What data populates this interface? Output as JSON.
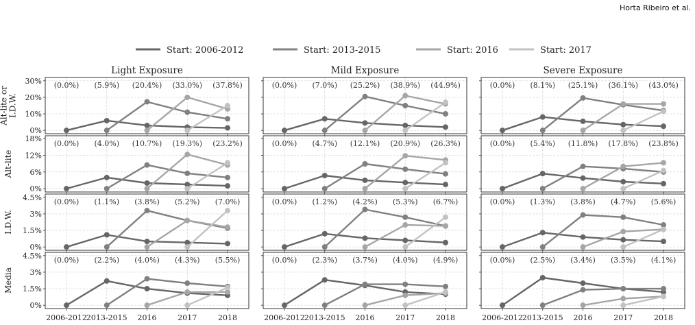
{
  "header": {
    "author": "Horta Ribeiro et al."
  },
  "chart_data": {
    "type": "line",
    "x_categories": [
      "2006-2012",
      "2013-2015",
      "2016",
      "2017",
      "2018"
    ],
    "legend": {
      "placement": "top",
      "entries": [
        {
          "name": "Start: 2006-2012",
          "color": "#666666"
        },
        {
          "name": "Start: 2013-2015",
          "color": "#808080"
        },
        {
          "name": "Start: 2016",
          "color": "#a6a6a6"
        },
        {
          "name": "Start: 2017",
          "color": "#c2c2c2"
        }
      ]
    },
    "columns": [
      "Light Exposure",
      "Mild Exposure",
      "Severe Exposure"
    ],
    "grid": true,
    "rows": [
      {
        "ylabel": [
          "Alt-lite or",
          "I.D.W."
        ],
        "ylim": [
          -2,
          32
        ],
        "yticks": [
          0,
          10,
          20,
          30
        ],
        "yticklabels": [
          "0%",
          "10%",
          "20%",
          "30%"
        ],
        "panels": [
          {
            "annotations": [
              "(0.0%)",
              "(5.9%)",
              "(20.4%)",
              "(33.0%)",
              "(37.8%)"
            ],
            "series": [
              {
                "name": "Start: 2006-2012",
                "start": 0,
                "values": [
                  0,
                  5.9,
                  3,
                  2,
                  1.5
                ]
              },
              {
                "name": "Start: 2013-2015",
                "start": 1,
                "values": [
                  0,
                  17.3,
                  11,
                  7
                ]
              },
              {
                "name": "Start: 2016",
                "start": 2,
                "values": [
                  0,
                  20,
                  13
                ]
              },
              {
                "name": "Start: 2017",
                "start": 3,
                "values": [
                  0,
                  15
                ]
              }
            ]
          },
          {
            "annotations": [
              "(0.0%)",
              "(7.0%)",
              "(25.2%)",
              "(38.9%)",
              "(44.9%)"
            ],
            "series": [
              {
                "name": "Start: 2006-2012",
                "start": 0,
                "values": [
                  0,
                  7,
                  4.5,
                  3,
                  2
                ]
              },
              {
                "name": "Start: 2013-2015",
                "start": 1,
                "values": [
                  0,
                  20.5,
                  15,
                  10
                ]
              },
              {
                "name": "Start: 2016",
                "start": 2,
                "values": [
                  0,
                  21,
                  16
                ]
              },
              {
                "name": "Start: 2017",
                "start": 3,
                "values": [
                  0,
                  17
                ]
              }
            ]
          },
          {
            "annotations": [
              "(0.0%)",
              "(8.1%)",
              "(25.1%)",
              "(36.1%)",
              "(43.0%)"
            ],
            "series": [
              {
                "name": "Start: 2006-2012",
                "start": 0,
                "values": [
                  0,
                  8.1,
                  5.5,
                  3.5,
                  2.5
                ]
              },
              {
                "name": "Start: 2013-2015",
                "start": 1,
                "values": [
                  0,
                  19.6,
                  15.5,
                  12
                ]
              },
              {
                "name": "Start: 2016",
                "start": 2,
                "values": [
                  0,
                  16,
                  16
                ]
              },
              {
                "name": "Start: 2017",
                "start": 3,
                "values": [
                  0,
                  11.5
                ]
              }
            ]
          }
        ]
      },
      {
        "ylabel": [
          "Alt-lite"
        ],
        "ylim": [
          -1.2,
          19
        ],
        "yticks": [
          0,
          6,
          12,
          18
        ],
        "yticklabels": [
          "0%",
          "6%",
          "12%",
          "18%"
        ],
        "panels": [
          {
            "annotations": [
              "(0.0%)",
              "(4.0%)",
              "(10.7%)",
              "(19.3%)",
              "(23.2%)"
            ],
            "series": [
              {
                "name": "Start: 2006-2012",
                "start": 0,
                "values": [
                  0,
                  4,
                  2,
                  1.5,
                  1
                ]
              },
              {
                "name": "Start: 2013-2015",
                "start": 1,
                "values": [
                  0,
                  8.5,
                  5.5,
                  4
                ]
              },
              {
                "name": "Start: 2016",
                "start": 2,
                "values": [
                  0,
                  12.3,
                  8.5
                ]
              },
              {
                "name": "Start: 2017",
                "start": 3,
                "values": [
                  0,
                  9.3
                ]
              }
            ]
          },
          {
            "annotations": [
              "(0.0%)",
              "(4.7%)",
              "(12.1%)",
              "(20.9%)",
              "(26.3%)"
            ],
            "series": [
              {
                "name": "Start: 2006-2012",
                "start": 0,
                "values": [
                  0,
                  4.7,
                  3,
                  2.2,
                  1.5
                ]
              },
              {
                "name": "Start: 2013-2015",
                "start": 1,
                "values": [
                  0,
                  8.9,
                  7,
                  5.3
                ]
              },
              {
                "name": "Start: 2016",
                "start": 2,
                "values": [
                  0,
                  11.8,
                  10.3
                ]
              },
              {
                "name": "Start: 2017",
                "start": 3,
                "values": [
                  0,
                  9.3
                ]
              }
            ]
          },
          {
            "annotations": [
              "(0.0%)",
              "(5.4%)",
              "(11.8%)",
              "(17.8%)",
              "(23.8%)"
            ],
            "series": [
              {
                "name": "Start: 2006-2012",
                "start": 0,
                "values": [
                  0,
                  5.4,
                  3.8,
                  2.5,
                  1.8
                ]
              },
              {
                "name": "Start: 2013-2015",
                "start": 1,
                "values": [
                  0,
                  8,
                  7.2,
                  6
                ]
              },
              {
                "name": "Start: 2016",
                "start": 2,
                "values": [
                  0,
                  8,
                  9.3
                ]
              },
              {
                "name": "Start: 2017",
                "start": 3,
                "values": [
                  0,
                  6.5
                ]
              }
            ]
          }
        ]
      },
      {
        "ylabel": [
          "I.D.W."
        ],
        "ylim": [
          -0.3,
          4.8
        ],
        "yticks": [
          0,
          1.5,
          3,
          4.5
        ],
        "yticklabels": [
          "0%",
          "1.5%",
          "3%",
          "4.5%"
        ],
        "panels": [
          {
            "annotations": [
              "(0.0%)",
              "(1.1%)",
              "(3.8%)",
              "(5.2%)",
              "(7.0%)"
            ],
            "series": [
              {
                "name": "Start: 2006-2012",
                "start": 0,
                "values": [
                  0,
                  1.1,
                  0.5,
                  0.4,
                  0.3
                ]
              },
              {
                "name": "Start: 2013-2015",
                "start": 1,
                "values": [
                  0,
                  3.3,
                  2.4,
                  1.7
                ]
              },
              {
                "name": "Start: 2016",
                "start": 2,
                "values": [
                  0,
                  2.4,
                  1.8
                ]
              },
              {
                "name": "Start: 2017",
                "start": 3,
                "values": [
                  0,
                  3.3
                ]
              }
            ]
          },
          {
            "annotations": [
              "(0.0%)",
              "(1.2%)",
              "(4.2%)",
              "(5.3%)",
              "(6.7%)"
            ],
            "series": [
              {
                "name": "Start: 2006-2012",
                "start": 0,
                "values": [
                  0,
                  1.2,
                  0.8,
                  0.6,
                  0.4
                ]
              },
              {
                "name": "Start: 2013-2015",
                "start": 1,
                "values": [
                  0,
                  3.4,
                  2.7,
                  1.9
                ]
              },
              {
                "name": "Start: 2016",
                "start": 2,
                "values": [
                  0,
                  2,
                  1.9
                ]
              },
              {
                "name": "Start: 2017",
                "start": 3,
                "values": [
                  0,
                  2.7
                ]
              }
            ]
          },
          {
            "annotations": [
              "(0.0%)",
              "(1.3%)",
              "(3.8%)",
              "(4.7%)",
              "(5.6%)"
            ],
            "series": [
              {
                "name": "Start: 2006-2012",
                "start": 0,
                "values": [
                  0,
                  1.3,
                  0.9,
                  0.65,
                  0.5
                ]
              },
              {
                "name": "Start: 2013-2015",
                "start": 1,
                "values": [
                  0,
                  2.9,
                  2.7,
                  2
                ]
              },
              {
                "name": "Start: 2016",
                "start": 2,
                "values": [
                  0,
                  1.4,
                  1.6
                ]
              },
              {
                "name": "Start: 2017",
                "start": 3,
                "values": [
                  0,
                  1.6
                ]
              }
            ]
          }
        ]
      },
      {
        "ylabel": [
          "Media"
        ],
        "ylim": [
          -0.3,
          4.8
        ],
        "yticks": [
          0,
          1.5,
          3,
          4.5
        ],
        "yticklabels": [
          "0%",
          "1.5%",
          "3%",
          "4.5%"
        ],
        "panels": [
          {
            "annotations": [
              "(0.0%)",
              "(2.2%)",
              "(4.0%)",
              "(4.3%)",
              "(5.5%)"
            ],
            "series": [
              {
                "name": "Start: 2006-2012",
                "start": 0,
                "values": [
                  0,
                  2.2,
                  1.5,
                  1.1,
                  0.9
                ]
              },
              {
                "name": "Start: 2013-2015",
                "start": 1,
                "values": [
                  0,
                  2.4,
                  2,
                  1.7
                ]
              },
              {
                "name": "Start: 2016",
                "start": 2,
                "values": [
                  0,
                  1.2,
                  1.2
                ]
              },
              {
                "name": "Start: 2017",
                "start": 3,
                "values": [
                  0,
                  1.6
                ]
              }
            ]
          },
          {
            "annotations": [
              "(0.0%)",
              "(2.3%)",
              "(3.7%)",
              "(4.0%)",
              "(4.9%)"
            ],
            "series": [
              {
                "name": "Start: 2006-2012",
                "start": 0,
                "values": [
                  0,
                  2.3,
                  1.8,
                  1.2,
                  1
                ]
              },
              {
                "name": "Start: 2013-2015",
                "start": 1,
                "values": [
                  0,
                  1.9,
                  1.9,
                  1.7
                ]
              },
              {
                "name": "Start: 2016",
                "start": 2,
                "values": [
                  0,
                  0.9,
                  1.1
                ]
              },
              {
                "name": "Start: 2017",
                "start": 3,
                "values": [
                  0,
                  1.2
                ]
              }
            ]
          },
          {
            "annotations": [
              "(0.0%)",
              "(2.5%)",
              "(3.4%)",
              "(3.5%)",
              "(4.1%)"
            ],
            "series": [
              {
                "name": "Start: 2006-2012",
                "start": 0,
                "values": [
                  0,
                  2.5,
                  2,
                  1.5,
                  1.2
                ]
              },
              {
                "name": "Start: 2013-2015",
                "start": 1,
                "values": [
                  0,
                  1.4,
                  1.5,
                  1.5
                ]
              },
              {
                "name": "Start: 2016",
                "start": 2,
                "values": [
                  0,
                  0.6,
                  0.8
                ]
              },
              {
                "name": "Start: 2017",
                "start": 3,
                "values": [
                  0,
                  0.8
                ]
              }
            ]
          }
        ]
      }
    ]
  }
}
